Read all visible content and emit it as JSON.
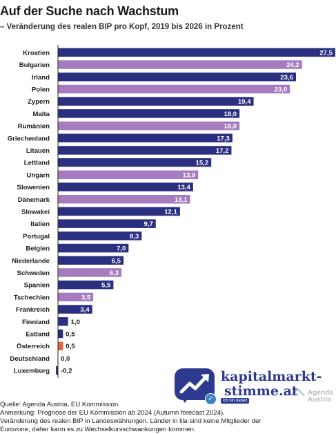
{
  "title": "Auf der Suche nach Wachstum",
  "subtitle": "– Veränderung des realen BIP pro Kopf, 2019 bis 2026 in Prozent",
  "colors": {
    "euro": "#2b2f7f",
    "non_euro": "#a77bbf",
    "austria": "#e0683a",
    "axis": "#222222"
  },
  "chart_data": {
    "type": "bar",
    "orientation": "horizontal",
    "categories": [
      "Kroatien",
      "Bulgarien",
      "Irland",
      "Polen",
      "Zypern",
      "Malta",
      "Rumänien",
      "Griechenland",
      "Litauen",
      "Lettland",
      "Ungarn",
      "Slowenien",
      "Dänemark",
      "Slowakei",
      "Italien",
      "Portugal",
      "Belgien",
      "Niederlande",
      "Schweden",
      "Spanien",
      "Tschechien",
      "Frankreich",
      "Finnland",
      "Estland",
      "Österreich",
      "Deutschland",
      "Luxemburg"
    ],
    "values": [
      27.5,
      24.2,
      23.6,
      23.0,
      19.4,
      18.0,
      18.0,
      17.3,
      17.2,
      15.2,
      13.9,
      13.4,
      13.1,
      12.1,
      9.7,
      8.3,
      7.0,
      6.5,
      6.3,
      5.5,
      3.5,
      3.4,
      1.0,
      0.5,
      0.5,
      0.0,
      -0.2
    ],
    "value_labels": [
      "27,5",
      "24,2",
      "23,6",
      "23,0",
      "19,4",
      "18,0",
      "18,0",
      "17,3",
      "17,2",
      "15,2",
      "13,9",
      "13,4",
      "13,1",
      "12,1",
      "9,7",
      "8,3",
      "7,0",
      "6,5",
      "6,3",
      "5,5",
      "3,5",
      "3,4",
      "1,0",
      "0,5",
      "0,5",
      "0,0",
      "-0,2"
    ],
    "groups": [
      "euro",
      "non_euro",
      "euro",
      "non_euro",
      "euro",
      "euro",
      "non_euro",
      "euro",
      "euro",
      "euro",
      "non_euro",
      "euro",
      "non_euro",
      "euro",
      "euro",
      "euro",
      "euro",
      "euro",
      "non_euro",
      "euro",
      "non_euro",
      "euro",
      "euro",
      "euro",
      "austria",
      "euro",
      "euro"
    ],
    "xlim": [
      -0.2,
      27.5
    ],
    "grid": false,
    "legend": "none"
  },
  "notes": {
    "source": "Quelle: Agenda Austria, EU Kommission.",
    "remark": "Anmerkung: Prognose der EU Kommission ab 2024 (Autumn forecast 2024).",
    "line3": "Veränderung des realen BIP in Landeswährungen. Länder in lila sind keine Mitglieder der",
    "line4": "Eurozone, daher kann es zu Wechselkursschwankungen kommen."
  },
  "logo": {
    "line1": "kapitalmarkt-",
    "line2": "stimme.at",
    "tag": "ich bin dabei!",
    "icon": "trend-arrow-icon"
  },
  "agenda_logo": {
    "line1": "Agenda",
    "line2": "Austria"
  }
}
